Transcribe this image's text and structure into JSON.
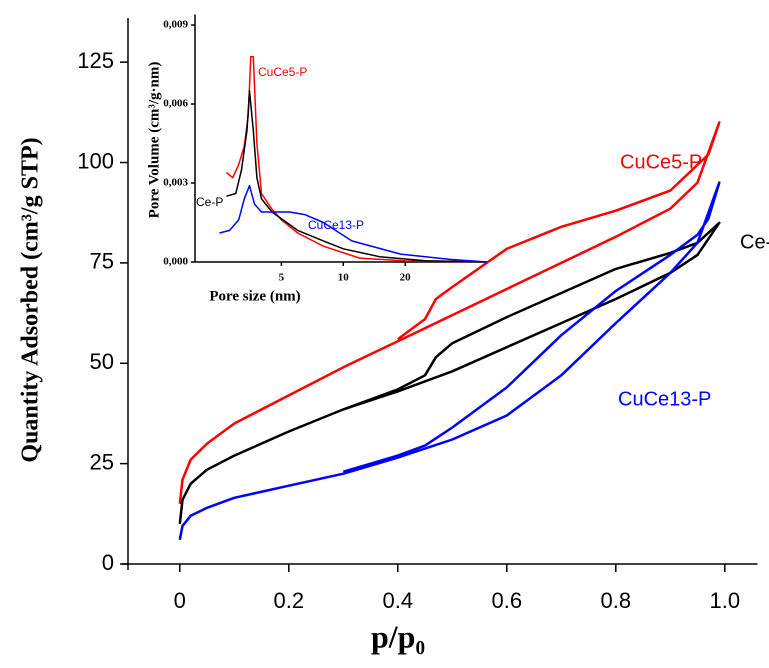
{
  "chart_data": [
    {
      "type": "line",
      "x_label": "p/p₀",
      "y_label": "Quantity Adsorbed (cm³/g STP)",
      "xlim": [
        -0.095,
        1.06
      ],
      "ylim": [
        0,
        136
      ],
      "xticks": [
        0,
        0.2,
        0.4,
        0.6,
        0.8,
        {
          "value": 1,
          "label": "1.0"
        }
      ],
      "yticks": [
        0,
        25,
        50,
        75,
        100,
        125
      ],
      "series": [
        {
          "name": "CuCe5-P",
          "color": "#ff0000",
          "x": [
            0,
            0.005,
            0.02,
            0.05,
            0.1,
            0.2,
            0.3,
            0.4,
            0.5,
            0.6,
            0.7,
            0.8,
            0.9,
            0.95,
            0.99,
            0.97,
            0.9,
            0.8,
            0.7,
            0.6,
            0.5,
            0.47,
            0.45,
            0.42,
            0.4
          ],
          "values": [
            15,
            21,
            26,
            30,
            35,
            42,
            49,
            55.5,
            62,
            68.5,
            75,
            81.5,
            88.5,
            95,
            110,
            102,
            93,
            88,
            84,
            78.5,
            69,
            66,
            61,
            58,
            56
          ]
        },
        {
          "name": "Ce-P",
          "color": "#000000",
          "x": [
            0,
            0.005,
            0.02,
            0.05,
            0.1,
            0.2,
            0.3,
            0.4,
            0.5,
            0.6,
            0.7,
            0.8,
            0.9,
            0.95,
            0.99,
            0.95,
            0.9,
            0.8,
            0.7,
            0.6,
            0.5,
            0.47,
            0.45,
            0.4,
            0.3
          ],
          "values": [
            10,
            16,
            20,
            23.5,
            27,
            33,
            38.5,
            43,
            48,
            54,
            60,
            66,
            72.5,
            77,
            85,
            80,
            77.5,
            73.5,
            67.5,
            61.5,
            55,
            51.5,
            47,
            43.5,
            38.5
          ]
        },
        {
          "name": "CuCe13-P",
          "color": "#0000ff",
          "x": [
            0,
            0.005,
            0.02,
            0.05,
            0.1,
            0.2,
            0.3,
            0.4,
            0.5,
            0.6,
            0.7,
            0.8,
            0.9,
            0.95,
            0.99,
            0.97,
            0.95,
            0.9,
            0.8,
            0.7,
            0.6,
            0.5,
            0.45,
            0.4,
            0.3
          ],
          "values": [
            6,
            9.5,
            12,
            14,
            16.5,
            19.5,
            22.5,
            26.5,
            31,
            37,
            47,
            60,
            72.5,
            80,
            95,
            86,
            82,
            77,
            68,
            57,
            44,
            34,
            29.5,
            27,
            23
          ]
        }
      ]
    },
    {
      "type": "line",
      "x_label": "Pore size (nm)",
      "y_label": "Pore Volume (cm³/g·nm)",
      "xlim": [
        1.9,
        50
      ],
      "xlog": true,
      "ylim": [
        0,
        0.0094
      ],
      "xticks": [
        5,
        10,
        20
      ],
      "yticks": [
        {
          "value": 0,
          "label": "0,000"
        },
        {
          "value": 0.003,
          "label": "0,003"
        },
        {
          "value": 0.006,
          "label": "0,006"
        },
        {
          "value": 0.009,
          "label": "0,009"
        }
      ],
      "series": [
        {
          "name": "CuCe5-P",
          "color": "#ff0000",
          "x": [
            2.7,
            2.9,
            3.1,
            3.3,
            3.45,
            3.55,
            3.65,
            3.8,
            4.0,
            4.5,
            5,
            6,
            8,
            12,
            20,
            50
          ],
          "values": [
            0.0034,
            0.0032,
            0.0037,
            0.0044,
            0.0056,
            0.0078,
            0.0078,
            0.0045,
            0.0026,
            0.002,
            0.0016,
            0.0011,
            0.0006,
            0.00015,
            4e-05,
            0
          ]
        },
        {
          "name": "Ce-P",
          "color": "#000000",
          "x": [
            2.7,
            3.0,
            3.2,
            3.4,
            3.5,
            3.65,
            3.8,
            4.0,
            4.5,
            6,
            8,
            10,
            15,
            25,
            50
          ],
          "values": [
            0.0025,
            0.0026,
            0.0035,
            0.005,
            0.0065,
            0.005,
            0.0032,
            0.0024,
            0.0019,
            0.0012,
            0.0008,
            0.0005,
            0.0002,
            5e-05,
            0
          ]
        },
        {
          "name": "CuCe13-P",
          "color": "#0000ff",
          "x": [
            2.5,
            2.8,
            3.1,
            3.3,
            3.5,
            3.7,
            4.0,
            4.5,
            5.5,
            6.5,
            8,
            11,
            19,
            33,
            50
          ],
          "values": [
            0.0011,
            0.0012,
            0.0016,
            0.0024,
            0.0029,
            0.0022,
            0.0019,
            0.0019,
            0.0019,
            0.0018,
            0.0015,
            0.0008,
            0.0003,
            0.0001,
            0
          ]
        }
      ]
    }
  ]
}
